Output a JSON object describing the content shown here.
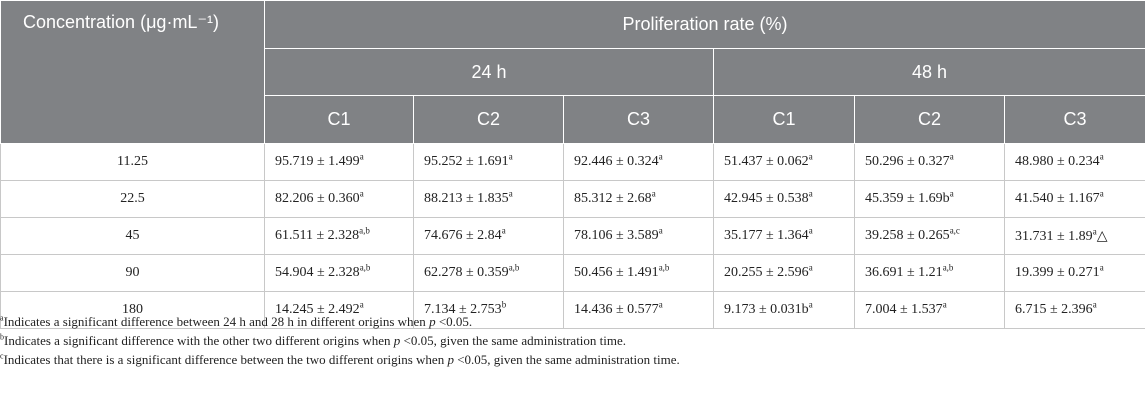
{
  "header": {
    "concentration": "Concentration (μg·mL⁻¹)",
    "proliferation": "Proliferation rate (%)",
    "time_24": "24 h",
    "time_48": "48 h",
    "cols": [
      "C1",
      "C2",
      "C3",
      "C1",
      "C2",
      "C3"
    ]
  },
  "rows": [
    {
      "conc": "11.25",
      "cells": [
        {
          "v": "95.719 ± 1.499",
          "s": "a",
          "t": ""
        },
        {
          "v": "95.252 ± 1.691",
          "s": "a",
          "t": ""
        },
        {
          "v": "92.446 ± 0.324",
          "s": "a",
          "t": ""
        },
        {
          "v": "51.437 ± 0.062",
          "s": "a",
          "t": ""
        },
        {
          "v": "50.296 ± 0.327",
          "s": "a",
          "t": ""
        },
        {
          "v": "48.980 ± 0.234",
          "s": "a",
          "t": ""
        }
      ]
    },
    {
      "conc": "22.5",
      "cells": [
        {
          "v": "82.206 ± 0.360",
          "s": "a",
          "t": ""
        },
        {
          "v": "88.213 ± 1.835",
          "s": "a",
          "t": ""
        },
        {
          "v": "85.312 ± 2.68",
          "s": "a",
          "t": ""
        },
        {
          "v": "42.945 ± 0.538",
          "s": "a",
          "t": ""
        },
        {
          "v": "45.359 ± 1.69b",
          "s": "a",
          "t": ""
        },
        {
          "v": "41.540 ± 1.167",
          "s": "a",
          "t": ""
        }
      ]
    },
    {
      "conc": "45",
      "cells": [
        {
          "v": "61.511 ± 2.328",
          "s": "a,b",
          "t": ""
        },
        {
          "v": "74.676 ± 2.84",
          "s": "a",
          "t": ""
        },
        {
          "v": "78.106 ± 3.589",
          "s": "a",
          "t": ""
        },
        {
          "v": "35.177 ± 1.364",
          "s": "a",
          "t": ""
        },
        {
          "v": "39.258 ± 0.265",
          "s": "a,c",
          "t": ""
        },
        {
          "v": "31.731 ± 1.89",
          "s": "a",
          "t": "△"
        }
      ]
    },
    {
      "conc": "90",
      "cells": [
        {
          "v": "54.904 ± 2.328",
          "s": "a,b",
          "t": ""
        },
        {
          "v": "62.278 ± 0.359",
          "s": "a,b",
          "t": ""
        },
        {
          "v": "50.456 ± 1.491",
          "s": "a,b",
          "t": ""
        },
        {
          "v": "20.255 ± 2.596",
          "s": "a",
          "t": ""
        },
        {
          "v": "36.691 ± 1.21",
          "s": "a,b",
          "t": ""
        },
        {
          "v": "19.399 ± 0.271",
          "s": "a",
          "t": ""
        }
      ]
    },
    {
      "conc": "180",
      "cells": [
        {
          "v": "14.245 ± 2.492",
          "s": "a",
          "t": ""
        },
        {
          "v": "7.134 ± 2.753",
          "s": "b",
          "t": ""
        },
        {
          "v": "14.436 ± 0.577",
          "s": "a",
          "t": ""
        },
        {
          "v": "9.173 ± 0.031b",
          "s": "a",
          "t": ""
        },
        {
          "v": "7.004 ± 1.537",
          "s": "a",
          "t": ""
        },
        {
          "v": "6.715 ± 2.396",
          "s": "a",
          "t": ""
        }
      ]
    }
  ],
  "footnotes": [
    {
      "mark": "a",
      "pre": "Indicates a significant difference between 24 h and 28 h in different origins when ",
      "p": "p",
      "post": " <0.05."
    },
    {
      "mark": "b",
      "pre": "Indicates a significant difference with the other two different origins when ",
      "p": "p",
      "post": " <0.05, given the same administration time."
    },
    {
      "mark": "c",
      "pre": "Indicates that there is a significant difference between the two different origins when ",
      "p": "p",
      "post": " <0.05, given the same administration time."
    }
  ],
  "colors": {
    "header_bg": "#808285",
    "header_text": "#ffffff",
    "border": "#c8c8c8"
  }
}
